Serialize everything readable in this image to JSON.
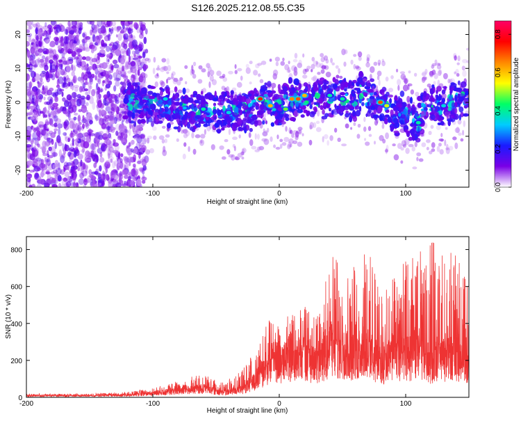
{
  "title": "S126.2025.212.08.55.C35",
  "chart_data": [
    {
      "type": "heatmap",
      "xlabel": "Height of straight line (km)",
      "ylabel": "Frequency (Hz)",
      "xlim": [
        -200,
        150
      ],
      "ylim": [
        -25,
        24
      ],
      "xticks": [
        -200,
        -100,
        0,
        100
      ],
      "yticks": [
        -20,
        -10,
        0,
        10,
        20
      ],
      "grid": false,
      "colorbar": {
        "label": "Normalized spectral amplitude",
        "range": [
          0.0,
          0.87
        ],
        "ticks": [
          0.0,
          0.2,
          0.4,
          0.6,
          0.8
        ],
        "colormap": [
          "#ffffff",
          "#7a00e6",
          "#1a1aff",
          "#00ccff",
          "#00ff66",
          "#ffff00",
          "#ff8800",
          "#ff0000",
          "#ff0066"
        ]
      },
      "ridge": {
        "x": [
          -120,
          -100,
          -80,
          -60,
          -40,
          -20,
          -10,
          0,
          10,
          20,
          40,
          60,
          65,
          75,
          90,
          100,
          110,
          115,
          130,
          150
        ],
        "freq": [
          0,
          -1,
          -2,
          -3,
          -3,
          -2,
          0,
          -1,
          1,
          1,
          2,
          1,
          3,
          0,
          -3,
          -4,
          -6,
          -1,
          -1,
          2
        ]
      }
    },
    {
      "type": "line",
      "xlabel": "Height of straight line (km)",
      "ylabel": "SNR (10 * v/v)",
      "xlim": [
        -200,
        150
      ],
      "ylim": [
        0,
        870
      ],
      "xticks": [
        -200,
        -100,
        0,
        100
      ],
      "yticks": [
        0,
        200,
        400,
        600,
        800
      ],
      "grid": false,
      "color": "#ee3333",
      "envelope": {
        "x": [
          -200,
          -150,
          -120,
          -100,
          -80,
          -60,
          -45,
          -30,
          -20,
          -10,
          -5,
          0,
          10,
          20,
          30,
          40,
          50,
          60,
          70,
          80,
          90,
          100,
          110,
          120,
          130,
          140,
          150
        ],
        "base": [
          8,
          8,
          12,
          20,
          35,
          45,
          25,
          40,
          80,
          150,
          200,
          180,
          200,
          220,
          160,
          250,
          230,
          220,
          250,
          150,
          230,
          200,
          220,
          180,
          200,
          210,
          180
        ],
        "peak": [
          20,
          20,
          30,
          50,
          90,
          130,
          80,
          140,
          260,
          400,
          440,
          380,
          470,
          500,
          430,
          800,
          700,
          730,
          820,
          560,
          650,
          740,
          780,
          860,
          820,
          780,
          600
        ]
      }
    }
  ]
}
